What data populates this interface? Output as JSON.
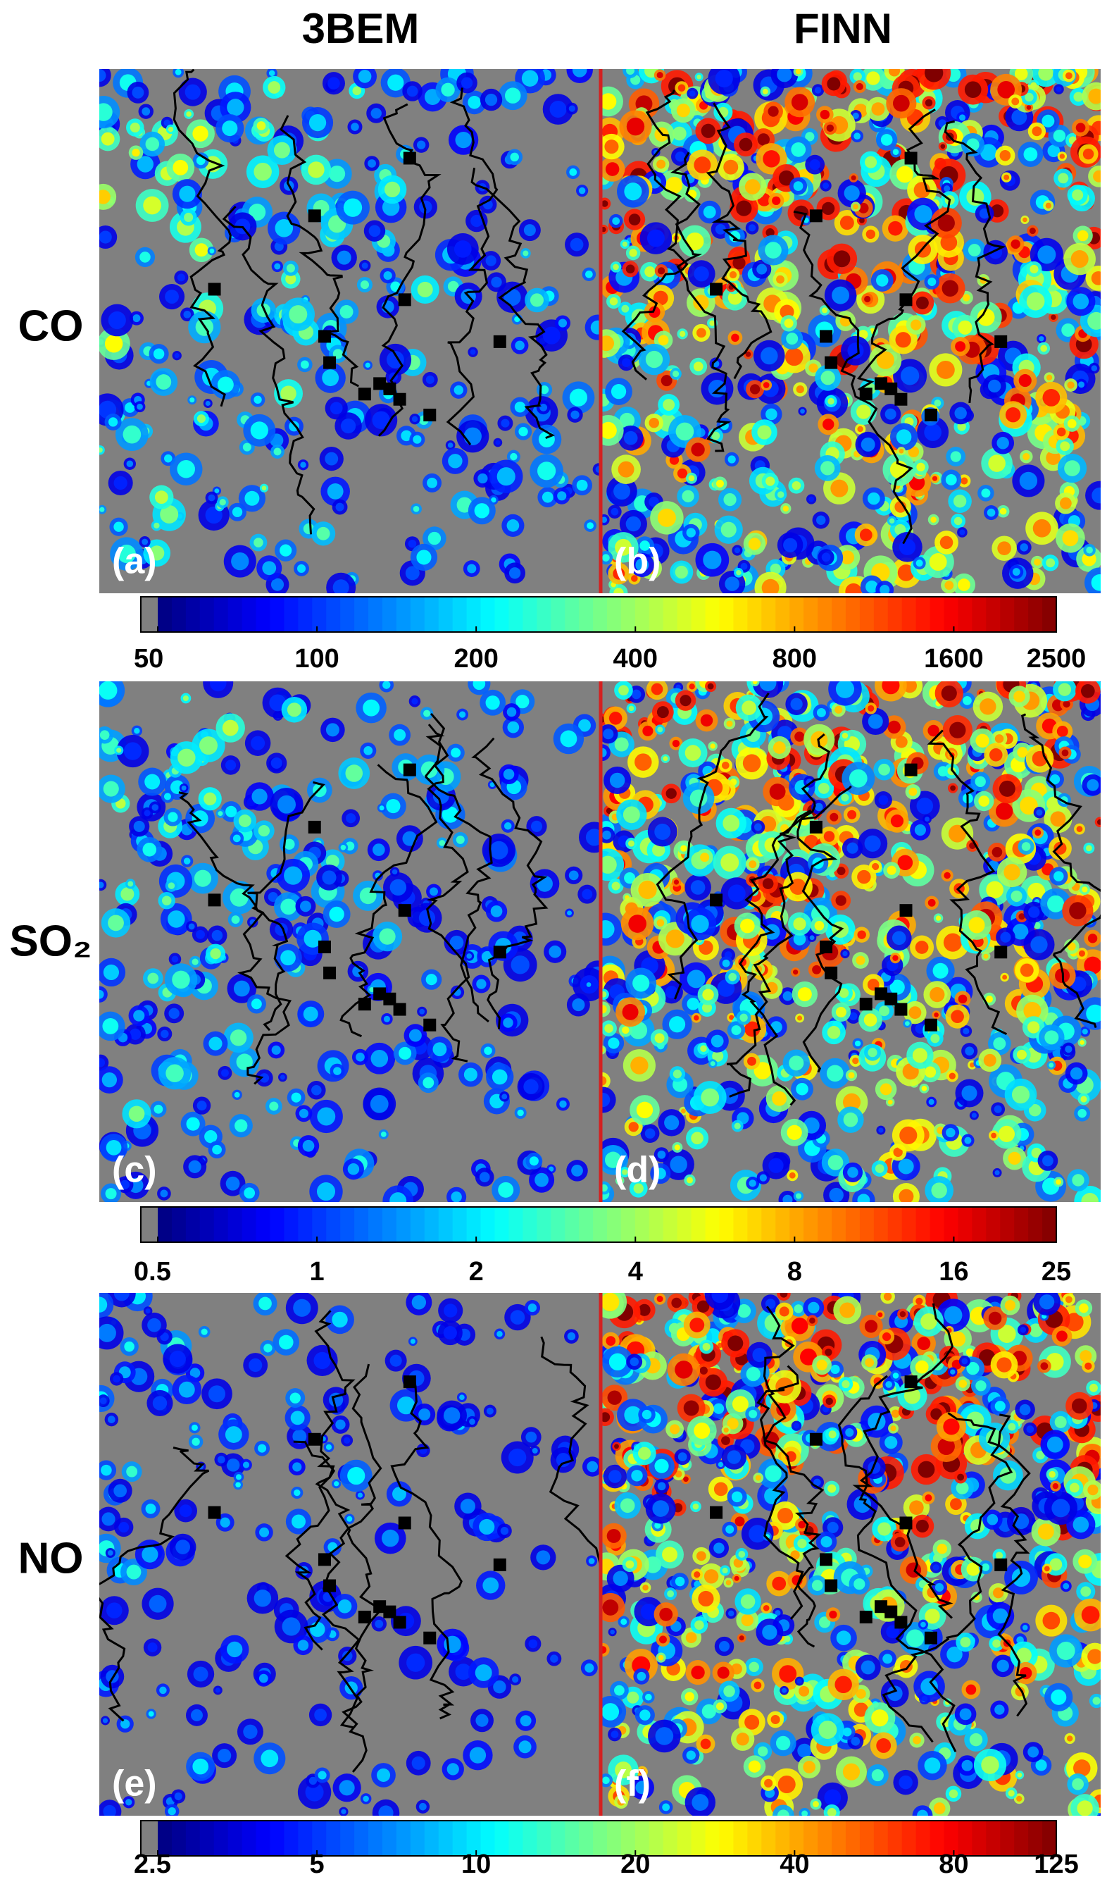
{
  "columns": [
    "3BEM",
    "FINN"
  ],
  "rows": [
    "CO",
    "SO₂",
    "NO"
  ],
  "panels": [
    "(a)",
    "(b)",
    "(c)",
    "(d)",
    "(e)",
    "(f)"
  ],
  "colorbars": [
    {
      "lim": [
        50,
        2500
      ],
      "ticks": [
        50,
        100,
        200,
        400,
        800,
        1600,
        2500
      ],
      "log": true
    },
    {
      "lim": [
        0.5,
        25
      ],
      "ticks": [
        0.5,
        1,
        2,
        4,
        8,
        16,
        25
      ],
      "log": true
    },
    {
      "lim": [
        2.5,
        125
      ],
      "ticks": [
        2.5,
        5,
        10,
        20,
        40,
        80,
        125
      ],
      "log": true
    }
  ]
}
